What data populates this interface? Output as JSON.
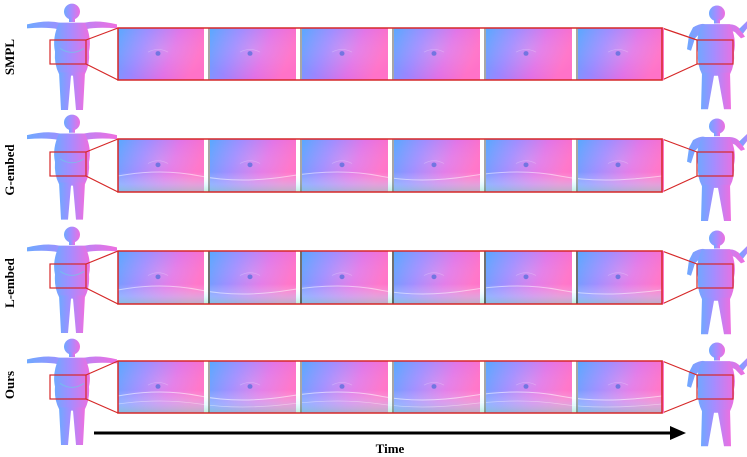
{
  "figure": {
    "rows": [
      {
        "label": "SMPL"
      },
      {
        "label": "G-embed"
      },
      {
        "label": "L-embed"
      },
      {
        "label": "Ours"
      }
    ],
    "frames_per_row": 6,
    "time_label": "Time",
    "colors": {
      "callout": "#d62828",
      "normal_pink": "#f06ad8",
      "normal_blue": "#58a6ff",
      "normal_violet": "#9c7cff",
      "normal_green": "#7fe0c0"
    }
  }
}
